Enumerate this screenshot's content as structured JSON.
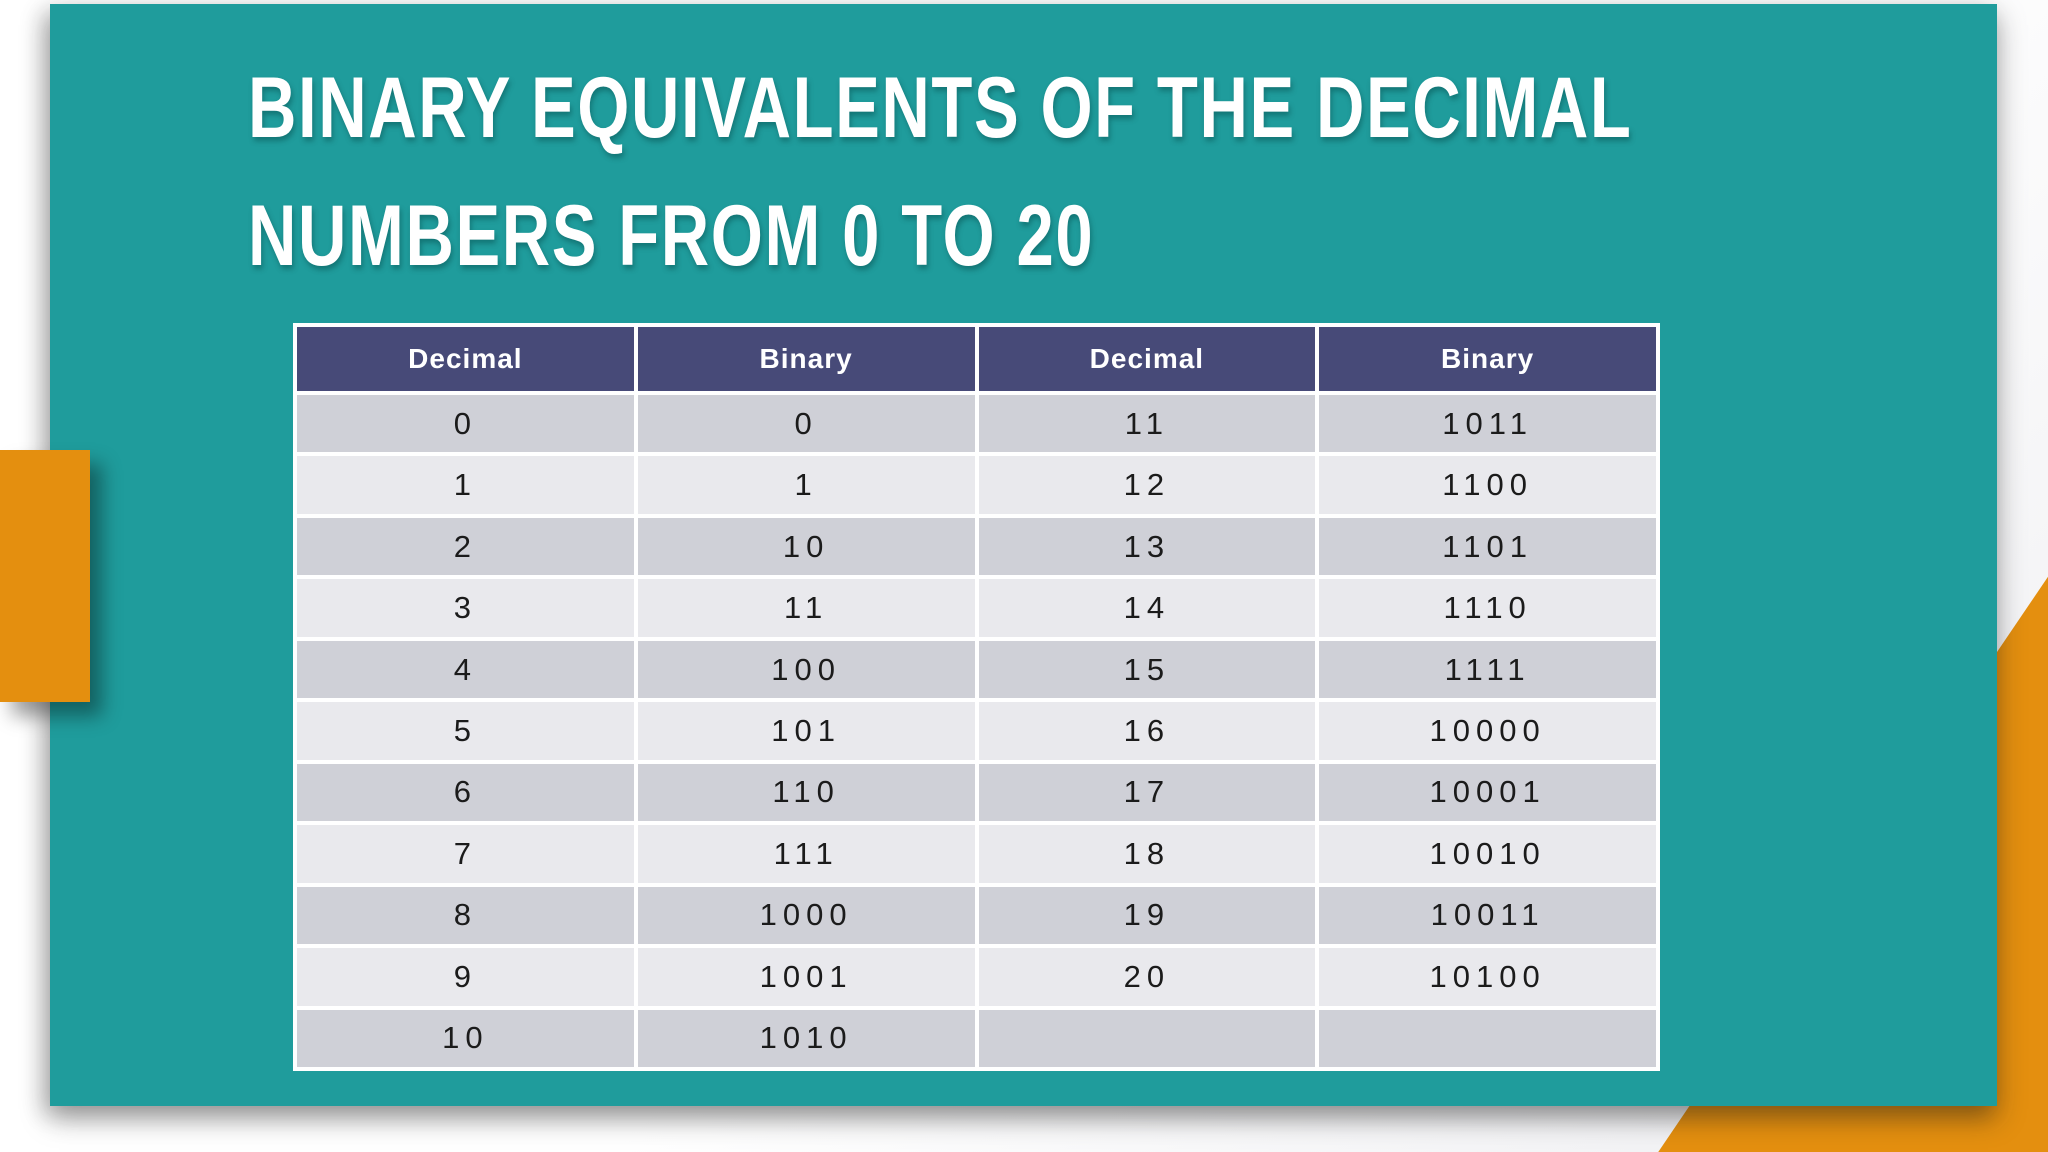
{
  "slide": {
    "title_line1": "BINARY EQUIVALENTS OF THE DECIMAL",
    "title_line2": "NUMBERS FROM 0 TO 20"
  },
  "table": {
    "headers": [
      "Decimal",
      "Binary",
      "Decimal",
      "Binary"
    ],
    "rows": [
      [
        "0",
        "0",
        "11",
        "1011"
      ],
      [
        "1",
        "1",
        "12",
        "1100"
      ],
      [
        "2",
        "10",
        "13",
        "1101"
      ],
      [
        "3",
        "11",
        "14",
        "1110"
      ],
      [
        "4",
        "100",
        "15",
        "1111"
      ],
      [
        "5",
        "101",
        "16",
        "10000"
      ],
      [
        "6",
        "110",
        "17",
        "10001"
      ],
      [
        "7",
        "111",
        "18",
        "10010"
      ],
      [
        "8",
        "1000",
        "19",
        "10011"
      ],
      [
        "9",
        "1001",
        "20",
        "10100"
      ],
      [
        "10",
        "1010",
        "",
        ""
      ]
    ]
  },
  "colors": {
    "slide_background": "#1F9C9C",
    "header_background": "#474A78",
    "row_dark": "#CFD0D7",
    "row_light": "#E9E9ED",
    "accent_orange": "#E48F0F",
    "title_text": "#FFFFFF",
    "cell_text": "#1B1B1B"
  }
}
